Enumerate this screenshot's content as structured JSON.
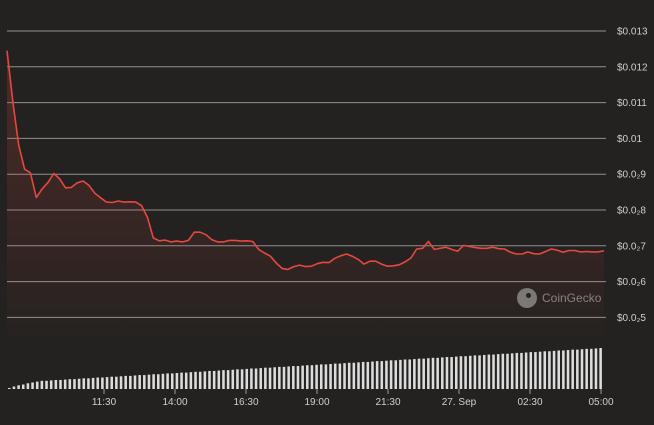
{
  "chart_data": {
    "type": "line",
    "title": "",
    "xlabel": "",
    "ylabel": "",
    "y_axis_position": "right",
    "ylim": [
      0.0045,
      0.013
    ],
    "y_ticks": [
      {
        "value": 0.013,
        "label": "$0.013"
      },
      {
        "value": 0.012,
        "label": "$0.012"
      },
      {
        "value": 0.011,
        "label": "$0.011"
      },
      {
        "value": 0.01,
        "label": "$0.01"
      },
      {
        "value": 0.009,
        "label": "$0.0₂9"
      },
      {
        "value": 0.008,
        "label": "$0.0₂8"
      },
      {
        "value": 0.007,
        "label": "$0.0₂7"
      },
      {
        "value": 0.006,
        "label": "$0.0₂6"
      },
      {
        "value": 0.005,
        "label": "$0.0₂5"
      }
    ],
    "x_ticks": [
      "11:30",
      "14:00",
      "16:30",
      "19:00",
      "21:30",
      "27. Sep",
      "02:30",
      "05:00"
    ],
    "grid": true,
    "colors": {
      "line": "#e8473f",
      "grid": "#b5b5b5",
      "volume": "#dcdcdc",
      "background": "#232220",
      "text": "#cfcfcf"
    },
    "series": [
      {
        "values": [
          0.01245,
          0.01101,
          0.00981,
          0.00914,
          0.00904,
          0.00835,
          0.00859,
          0.00877,
          0.00902,
          0.00887,
          0.00862,
          0.00863,
          0.00876,
          0.00881,
          0.00869,
          0.00847,
          0.00834,
          0.00822,
          0.00821,
          0.00825,
          0.00822,
          0.00823,
          0.00822,
          0.00812,
          0.00779,
          0.00722,
          0.00714,
          0.00716,
          0.00711,
          0.00713,
          0.00711,
          0.00715,
          0.00738,
          0.00738,
          0.00731,
          0.00717,
          0.00711,
          0.00711,
          0.00715,
          0.00715,
          0.00713,
          0.00714,
          0.00712,
          0.0069,
          0.0068,
          0.00671,
          0.00652,
          0.00637,
          0.00634,
          0.00642,
          0.00646,
          0.00642,
          0.00643,
          0.0065,
          0.00654,
          0.00653,
          0.00665,
          0.00672,
          0.00677,
          0.00671,
          0.00662,
          0.00649,
          0.00657,
          0.00657,
          0.00649,
          0.00643,
          0.00644,
          0.00647,
          0.00655,
          0.00666,
          0.00691,
          0.00693,
          0.00712,
          0.0069,
          0.00693,
          0.00696,
          0.0069,
          0.00685,
          0.00701,
          0.00698,
          0.00695,
          0.00693,
          0.00693,
          0.00696,
          0.00692,
          0.00691,
          0.00682,
          0.00677,
          0.00677,
          0.00683,
          0.00678,
          0.00677,
          0.00684,
          0.00691,
          0.00688,
          0.00682,
          0.00687,
          0.00687,
          0.00683,
          0.00684,
          0.00683,
          0.00683,
          0.00686
        ]
      }
    ],
    "volume": {
      "values": [
        0.02,
        0.06,
        0.09,
        0.11,
        0.14,
        0.16,
        0.18,
        0.2,
        0.2,
        0.21,
        0.22,
        0.22,
        0.23,
        0.24,
        0.24,
        0.25,
        0.26,
        0.26,
        0.27,
        0.28,
        0.28,
        0.29,
        0.3,
        0.3,
        0.31,
        0.32,
        0.32,
        0.33,
        0.34,
        0.34,
        0.35,
        0.36,
        0.36,
        0.37,
        0.38,
        0.38,
        0.39,
        0.4,
        0.4,
        0.41,
        0.42,
        0.42,
        0.43,
        0.44,
        0.44,
        0.45,
        0.46,
        0.46,
        0.47,
        0.48,
        0.48,
        0.49,
        0.5,
        0.5,
        0.51,
        0.52,
        0.52,
        0.53,
        0.54,
        0.54,
        0.55,
        0.56,
        0.56,
        0.57,
        0.58,
        0.58,
        0.59,
        0.6,
        0.6,
        0.61,
        0.62,
        0.62,
        0.63,
        0.64,
        0.64,
        0.65,
        0.66,
        0.66,
        0.67,
        0.68,
        0.68,
        0.69,
        0.7,
        0.7,
        0.71,
        0.72,
        0.72,
        0.73,
        0.74,
        0.74,
        0.75,
        0.76,
        0.76,
        0.77,
        0.78,
        0.78,
        0.79,
        0.8,
        0.8,
        0.81,
        0.82,
        0.82,
        0.83,
        0.84,
        0.84,
        0.85,
        0.86,
        0.86,
        0.87,
        0.88,
        0.88,
        0.89,
        0.9,
        0.9,
        0.91,
        0.92,
        0.92,
        0.93,
        0.94,
        0.94,
        0.95,
        0.96,
        0.96,
        0.97,
        0.98,
        0.98,
        0.99,
        1.0
      ]
    }
  },
  "watermark": {
    "text": "CoinGecko",
    "icon": "coingecko-logo-icon"
  }
}
